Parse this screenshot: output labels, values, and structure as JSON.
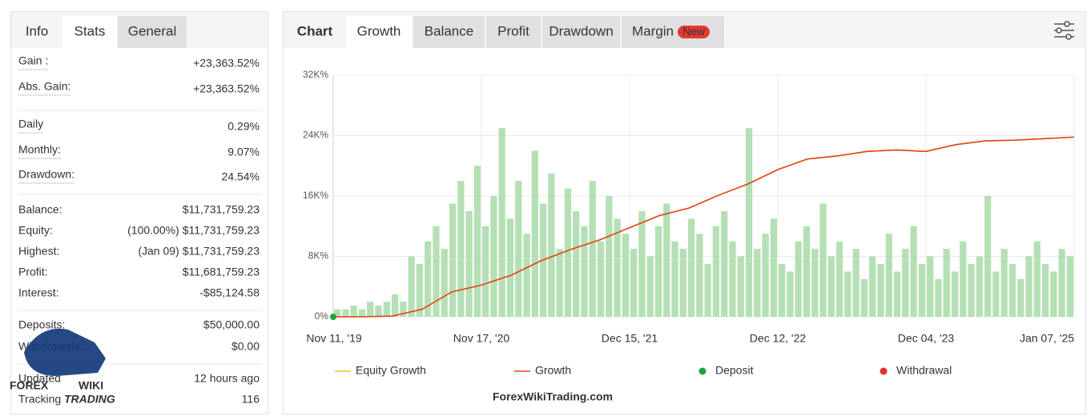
{
  "stats_panel": {
    "tabs": [
      "Info",
      "Stats",
      "General"
    ],
    "active_tab": 1,
    "sections": [
      [
        {
          "label": "Gain :",
          "value": "+23,363.52%",
          "color": "#22a33a"
        },
        {
          "label": "Abs. Gain:",
          "value": "+23,363.52%",
          "color": "#22a33a"
        }
      ],
      [
        {
          "label": "Daily",
          "value": "0.29%"
        },
        {
          "label": "Monthly:",
          "value": "9.07%"
        },
        {
          "label": "Drawdown:",
          "value": "24.54%"
        }
      ],
      [
        {
          "label": "Balance:",
          "value": "$11,731,759.23"
        },
        {
          "label": "Equity:",
          "note": "(100.00%)",
          "value": "$11,731,759.23"
        },
        {
          "label": "Highest:",
          "note": "(Jan 09)",
          "value": "$11,731,759.23"
        },
        {
          "label": "Profit:",
          "value": "$11,681,759.23",
          "color": "#22a33a"
        },
        {
          "label": "Interest:",
          "value": "-$85,124.58"
        }
      ],
      [
        {
          "label": "Deposits:",
          "value": "$50,000.00"
        },
        {
          "label": "Withdrawals:",
          "value": "$0.00"
        }
      ],
      [
        {
          "label": "Updated",
          "value": "12 hours ago"
        },
        {
          "label": "Tracking",
          "value": "116"
        }
      ]
    ]
  },
  "logo": {
    "word1": "FOREX",
    "word2": "WIKI",
    "word3": "TRADING"
  },
  "watermark": "ForexWikiTrading.com",
  "chart_panel": {
    "tabs": [
      "Chart",
      "Growth",
      "Balance",
      "Profit",
      "Drawdown",
      "Margin"
    ],
    "active_tab": 1,
    "badge": "New"
  },
  "chart_data": {
    "type": "line",
    "ylim": [
      0,
      32
    ],
    "yticks": [
      {
        "value": 0,
        "label": "0%"
      },
      {
        "value": 8,
        "label": "8K%"
      },
      {
        "value": 16,
        "label": "16K%"
      },
      {
        "value": 24,
        "label": "24K%"
      },
      {
        "value": 32,
        "label": "32K%"
      }
    ],
    "xticks": [
      "Nov 11, '19",
      "Nov 17, '20",
      "Dec 15, '21",
      "Dec 12, '22",
      "Dec 04, '23",
      "Jan 07, '25"
    ],
    "grid": true,
    "bars": {
      "color": "#a8dba8",
      "values": [
        1,
        1,
        1.5,
        1,
        2,
        1.5,
        2,
        3,
        2,
        8,
        7,
        10,
        12,
        9,
        15,
        18,
        14,
        20,
        12,
        16,
        25,
        13,
        18,
        11,
        22,
        15,
        19,
        9,
        17,
        14,
        12,
        18,
        10,
        16,
        13,
        11,
        9,
        14,
        8,
        12,
        15,
        10,
        9,
        13,
        11,
        7,
        12,
        14,
        10,
        8,
        25,
        9,
        11,
        13,
        7,
        6,
        10,
        12,
        9,
        15,
        8,
        10,
        6,
        9,
        5,
        8,
        7,
        11,
        6,
        9,
        12,
        7,
        8,
        5,
        9,
        6,
        10,
        7,
        8,
        16,
        6,
        9,
        7,
        5,
        8,
        10,
        7,
        6,
        9,
        8
      ]
    },
    "series": [
      {
        "name": "Equity Growth",
        "kind": "line",
        "color": "#f2c12e",
        "values": [
          0,
          0,
          0.1,
          1.0,
          3.3,
          4.2,
          5.5,
          7.4,
          8.9,
          10.2,
          11.8,
          13.4,
          14.4,
          16.1,
          17.6,
          19.5,
          20.9,
          21.3,
          21.9,
          22.1,
          21.9,
          22.8,
          23.3,
          23.4,
          23.6,
          23.8
        ]
      },
      {
        "name": "Growth",
        "kind": "line",
        "color": "#e0461c",
        "values": [
          0,
          0,
          0.1,
          1.0,
          3.3,
          4.2,
          5.5,
          7.4,
          8.9,
          10.2,
          11.8,
          13.4,
          14.4,
          16.1,
          17.6,
          19.5,
          20.9,
          21.3,
          21.9,
          22.1,
          21.9,
          22.8,
          23.3,
          23.4,
          23.6,
          23.8
        ]
      },
      {
        "name": "Deposit",
        "kind": "dot",
        "color": "#1aa33a",
        "values": [
          0
        ]
      },
      {
        "name": "Withdrawal",
        "kind": "dot",
        "color": "#e03030",
        "values": []
      }
    ]
  }
}
